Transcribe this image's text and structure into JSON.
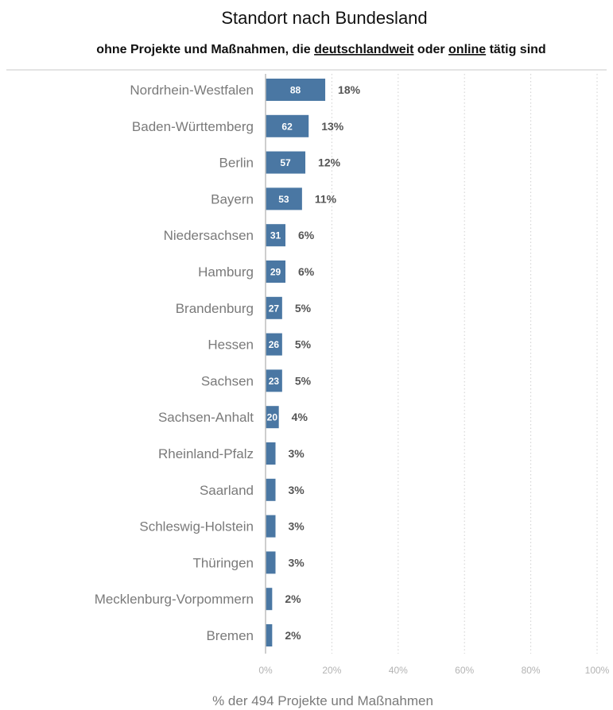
{
  "chart_data": {
    "type": "bar",
    "orientation": "horizontal",
    "title": "Standort nach Bundesland",
    "subtitle": {
      "before": "ohne Projekte und Maßnahmen, die ",
      "underlined_1": "deutschlandweit",
      "middle": " oder ",
      "underlined_2": "online",
      "after": " tätig sind"
    },
    "categories": [
      "Nordrhein-Westfalen",
      "Baden-Württemberg",
      "Berlin",
      "Bayern",
      "Niedersachsen",
      "Hamburg",
      "Brandenburg",
      "Hessen",
      "Sachsen",
      "Sachsen-Anhalt",
      "Rheinland-Pfalz",
      "Saarland",
      "Schleswig-Holstein",
      "Thüringen",
      "Mecklenburg-Vorpommern",
      "Bremen"
    ],
    "counts": [
      88,
      62,
      57,
      53,
      31,
      29,
      27,
      26,
      23,
      20,
      null,
      null,
      null,
      null,
      null,
      null
    ],
    "count_labels": [
      "88",
      "62",
      "57",
      "53",
      "31",
      "29",
      "27",
      "26",
      "23",
      "20",
      "",
      "",
      "",
      "",
      "",
      ""
    ],
    "values": [
      18,
      13,
      12,
      11,
      6,
      6,
      5,
      5,
      5,
      4,
      3,
      3,
      3,
      3,
      2,
      2
    ],
    "percent_labels": [
      "18%",
      "13%",
      "12%",
      "11%",
      "6%",
      "6%",
      "5%",
      "5%",
      "5%",
      "4%",
      "3%",
      "3%",
      "3%",
      "3%",
      "2%",
      "2%"
    ],
    "xlabel": "% der 494 Projekte und Maßnahmen",
    "xlim": [
      0,
      100
    ],
    "xticks": [
      "0%",
      "20%",
      "40%",
      "60%",
      "80%",
      "100%"
    ],
    "grid": "vertical dotted",
    "bar_color": "#4a77a3"
  }
}
